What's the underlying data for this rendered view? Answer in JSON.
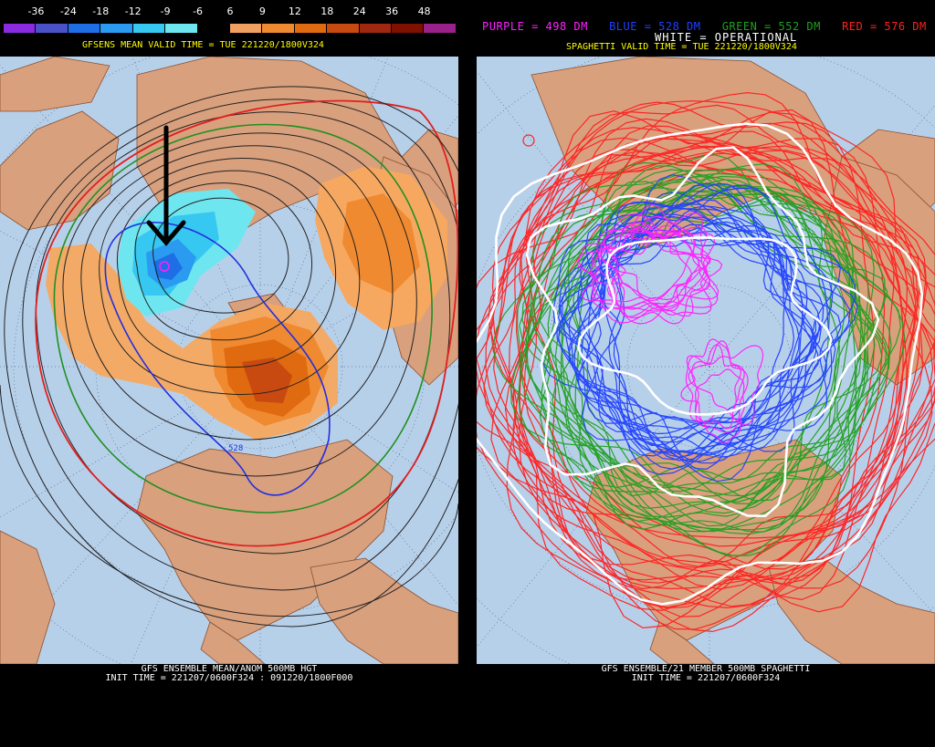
{
  "left_panel": {
    "colorbar": {
      "labels": [
        "-36",
        "-24",
        "-18",
        "-12",
        "-9",
        "-6",
        "6",
        "9",
        "12",
        "18",
        "24",
        "36",
        "48"
      ],
      "colors": [
        "#8a2be2",
        "#4b52c8",
        "#1e6ee6",
        "#2a9bf0",
        "#36c8f0",
        "#6ee6f0",
        "#000000",
        "#f0a060",
        "#f08a30",
        "#e06a10",
        "#c84a10",
        "#a02810",
        "#801000",
        "#9a208a"
      ]
    },
    "valid_time": "GFSENS MEAN VALID TIME = TUE 221220/1800V324",
    "footer_line1": "GFS ENSEMBLE MEAN/ANOM 500MB HGT",
    "footer_line2": "INIT TIME = 221207/0600F324 : 091220/1800F000",
    "contour_label": "528",
    "colors": {
      "ocean": "#b7d0ea",
      "land": "#d9a07e",
      "valid_text": "#ffff00",
      "red": "#e02020",
      "green": "#209020",
      "blue": "#2030e0",
      "black": "#222222"
    }
  },
  "right_panel": {
    "legend": [
      {
        "text": "PURPLE = 498 DM",
        "color": "#ff20ff"
      },
      {
        "text": "BLUE = 528 DM",
        "color": "#2040ff"
      },
      {
        "text": "GREEN = 552 DM",
        "color": "#20a020"
      },
      {
        "text": "RED = 576 DM",
        "color": "#ff2020"
      }
    ],
    "operational": "WHITE = OPERATIONAL",
    "valid_time": "SPAGHETTI VALID TIME = TUE 221220/1800V324",
    "footer_line1": "GFS ENSEMBLE/21 MEMBER 500MB SPAGHETTI",
    "footer_line2": "INIT TIME = 221207/0600F324"
  }
}
